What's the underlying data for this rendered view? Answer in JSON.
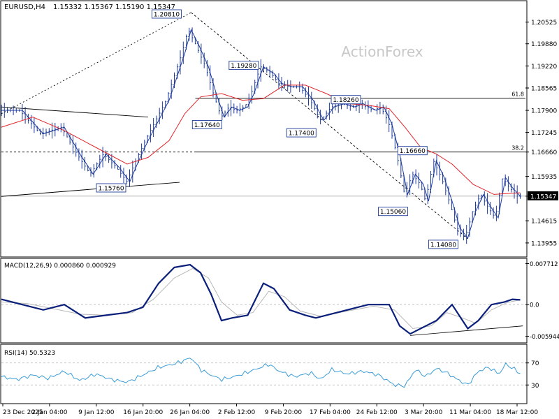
{
  "header": {
    "symbol": "EURUSD,H4",
    "ohlc": "1.15332 1.15367 1.15190 1.15347"
  },
  "watermark": "ActionForex",
  "colors": {
    "candle": "#1f3c99",
    "ma": "#e0252b",
    "macd": "#0a1f7a",
    "signal": "#b8b8b8",
    "rsi": "#3a9cd6",
    "level": "#000000",
    "grid": "#bdbdbd",
    "current_price_bg": "#000000"
  },
  "chart_data": [
    {
      "type": "candlestick",
      "name": "EURUSD H4",
      "ylim": [
        1.136,
        1.211
      ],
      "y_ticks": [
        "1.20525",
        "1.19880",
        "1.19220",
        "1.18565",
        "1.17900",
        "1.17245",
        "1.16660",
        "1.15935",
        "1.15347",
        "1.14615",
        "1.13955"
      ],
      "x_ticks": [
        "23 Dec 2025",
        "2 Jan 04:00",
        "9 Jan 12:00",
        "16 Jan 20:00",
        "26 Jan 04:00",
        "2 Feb 12:00",
        "9 Feb 20:00",
        "17 Feb 04:00",
        "24 Feb 12:00",
        "3 Mar 20:00",
        "11 Mar 04:00",
        "18 Mar 12:00"
      ],
      "current_price": "1.15347",
      "swing_labels": [
        {
          "text": "1.20810",
          "x": 0.346,
          "y": 1.2081
        },
        {
          "text": "1.19280",
          "x": 0.493,
          "y": 1.1928
        },
        {
          "text": "1.17640",
          "x": 0.423,
          "y": 1.1764
        },
        {
          "text": "1.17400",
          "x": 0.603,
          "y": 1.174
        },
        {
          "text": "1.18260",
          "x": 0.688,
          "y": 1.1826
        },
        {
          "text": "1.15760",
          "x": 0.24,
          "y": 1.1576
        },
        {
          "text": "1.16660",
          "x": 0.815,
          "y": 1.1666
        },
        {
          "text": "1.15060",
          "x": 0.778,
          "y": 1.1506
        },
        {
          "text": "1.14080",
          "x": 0.874,
          "y": 1.1408
        }
      ],
      "fib_levels": [
        {
          "label": "61.8",
          "value": 1.1826
        },
        {
          "label": "38.2",
          "value": 1.1666
        }
      ],
      "current_price_level": 1.15347,
      "anchors": [
        {
          "x": 0.0,
          "y": 1.179
        },
        {
          "x": 0.04,
          "y": 1.179
        },
        {
          "x": 0.08,
          "y": 1.172
        },
        {
          "x": 0.12,
          "y": 1.174
        },
        {
          "x": 0.15,
          "y": 1.166
        },
        {
          "x": 0.175,
          "y": 1.16
        },
        {
          "x": 0.2,
          "y": 1.166
        },
        {
          "x": 0.225,
          "y": 1.162
        },
        {
          "x": 0.245,
          "y": 1.1578
        },
        {
          "x": 0.262,
          "y": 1.164
        },
        {
          "x": 0.28,
          "y": 1.17
        },
        {
          "x": 0.3,
          "y": 1.176
        },
        {
          "x": 0.32,
          "y": 1.182
        },
        {
          "x": 0.333,
          "y": 1.188
        },
        {
          "x": 0.35,
          "y": 1.196
        },
        {
          "x": 0.362,
          "y": 1.203
        },
        {
          "x": 0.375,
          "y": 1.199
        },
        {
          "x": 0.395,
          "y": 1.192
        },
        {
          "x": 0.41,
          "y": 1.184
        },
        {
          "x": 0.425,
          "y": 1.177
        },
        {
          "x": 0.44,
          "y": 1.18
        },
        {
          "x": 0.455,
          "y": 1.179
        },
        {
          "x": 0.47,
          "y": 1.18
        },
        {
          "x": 0.482,
          "y": 1.184
        },
        {
          "x": 0.5,
          "y": 1.192
        },
        {
          "x": 0.52,
          "y": 1.19
        },
        {
          "x": 0.535,
          "y": 1.187
        },
        {
          "x": 0.555,
          "y": 1.186
        },
        {
          "x": 0.575,
          "y": 1.186
        },
        {
          "x": 0.595,
          "y": 1.182
        },
        {
          "x": 0.615,
          "y": 1.176
        },
        {
          "x": 0.635,
          "y": 1.18
        },
        {
          "x": 0.655,
          "y": 1.181
        },
        {
          "x": 0.675,
          "y": 1.18
        },
        {
          "x": 0.69,
          "y": 1.181
        },
        {
          "x": 0.715,
          "y": 1.179
        },
        {
          "x": 0.73,
          "y": 1.18
        },
        {
          "x": 0.745,
          "y": 1.175
        },
        {
          "x": 0.76,
          "y": 1.166
        },
        {
          "x": 0.775,
          "y": 1.154
        },
        {
          "x": 0.79,
          "y": 1.16
        },
        {
          "x": 0.805,
          "y": 1.157
        },
        {
          "x": 0.815,
          "y": 1.152
        },
        {
          "x": 0.83,
          "y": 1.164
        },
        {
          "x": 0.845,
          "y": 1.159
        },
        {
          "x": 0.86,
          "y": 1.152
        },
        {
          "x": 0.875,
          "y": 1.144
        },
        {
          "x": 0.89,
          "y": 1.141
        },
        {
          "x": 0.905,
          "y": 1.149
        },
        {
          "x": 0.92,
          "y": 1.154
        },
        {
          "x": 0.935,
          "y": 1.15
        },
        {
          "x": 0.948,
          "y": 1.147
        },
        {
          "x": 0.962,
          "y": 1.159
        },
        {
          "x": 0.975,
          "y": 1.156
        },
        {
          "x": 0.99,
          "y": 1.1535
        }
      ],
      "ma_points": [
        {
          "x": 0.0,
          "y": 1.174
        },
        {
          "x": 0.06,
          "y": 1.177
        },
        {
          "x": 0.12,
          "y": 1.173
        },
        {
          "x": 0.18,
          "y": 1.168
        },
        {
          "x": 0.24,
          "y": 1.163
        },
        {
          "x": 0.28,
          "y": 1.165
        },
        {
          "x": 0.32,
          "y": 1.17
        },
        {
          "x": 0.35,
          "y": 1.178
        },
        {
          "x": 0.38,
          "y": 1.183
        },
        {
          "x": 0.42,
          "y": 1.184
        },
        {
          "x": 0.46,
          "y": 1.182
        },
        {
          "x": 0.5,
          "y": 1.1825
        },
        {
          "x": 0.54,
          "y": 1.1865
        },
        {
          "x": 0.58,
          "y": 1.1865
        },
        {
          "x": 0.62,
          "y": 1.184
        },
        {
          "x": 0.66,
          "y": 1.181
        },
        {
          "x": 0.7,
          "y": 1.1805
        },
        {
          "x": 0.74,
          "y": 1.1795
        },
        {
          "x": 0.77,
          "y": 1.174
        },
        {
          "x": 0.8,
          "y": 1.168
        },
        {
          "x": 0.83,
          "y": 1.166
        },
        {
          "x": 0.86,
          "y": 1.163
        },
        {
          "x": 0.9,
          "y": 1.157
        },
        {
          "x": 0.94,
          "y": 1.154
        },
        {
          "x": 0.99,
          "y": 1.1545
        }
      ],
      "trendlines": [
        {
          "from": {
            "x": 0.0,
            "y": 1.178
          },
          "to": {
            "x": 0.362,
            "y": 1.2081
          },
          "style": "dotted"
        },
        {
          "from": {
            "x": 0.362,
            "y": 1.2081
          },
          "to": {
            "x": 0.89,
            "y": 1.1408
          },
          "style": "dashed"
        },
        {
          "from": {
            "x": 0.0,
            "y": 1.18
          },
          "to": {
            "x": 0.28,
            "y": 1.177
          },
          "style": "solid"
        },
        {
          "from": {
            "x": 0.0,
            "y": 1.1534
          },
          "to": {
            "x": 0.34,
            "y": 1.1576
          },
          "style": "solid"
        }
      ]
    },
    {
      "type": "line",
      "title": "MACD(12,26,9) 0.000860 0.000929",
      "ylim": [
        -0.0068,
        0.0083
      ],
      "y_ticks": [
        "0.007712",
        "0.0",
        "-0.005944"
      ],
      "zero_line": 0,
      "series": [
        {
          "name": "MACD",
          "points": [
            {
              "x": 0.0,
              "y": 0.001
            },
            {
              "x": 0.04,
              "y": 0.0
            },
            {
              "x": 0.08,
              "y": -0.001
            },
            {
              "x": 0.12,
              "y": 0.0
            },
            {
              "x": 0.16,
              "y": -0.0025
            },
            {
              "x": 0.2,
              "y": -0.002
            },
            {
              "x": 0.24,
              "y": -0.0015
            },
            {
              "x": 0.27,
              "y": -0.0005
            },
            {
              "x": 0.3,
              "y": 0.004
            },
            {
              "x": 0.33,
              "y": 0.007
            },
            {
              "x": 0.36,
              "y": 0.0075
            },
            {
              "x": 0.38,
              "y": 0.006
            },
            {
              "x": 0.4,
              "y": 0.002
            },
            {
              "x": 0.42,
              "y": -0.003
            },
            {
              "x": 0.44,
              "y": -0.0025
            },
            {
              "x": 0.47,
              "y": -0.002
            },
            {
              "x": 0.5,
              "y": 0.004
            },
            {
              "x": 0.52,
              "y": 0.003
            },
            {
              "x": 0.55,
              "y": -0.001
            },
            {
              "x": 0.58,
              "y": -0.002
            },
            {
              "x": 0.6,
              "y": -0.0025
            },
            {
              "x": 0.62,
              "y": -0.002
            },
            {
              "x": 0.66,
              "y": -0.001
            },
            {
              "x": 0.7,
              "y": 0.0
            },
            {
              "x": 0.74,
              "y": 0.0
            },
            {
              "x": 0.76,
              "y": -0.004
            },
            {
              "x": 0.78,
              "y": -0.0055
            },
            {
              "x": 0.81,
              "y": -0.004
            },
            {
              "x": 0.83,
              "y": -0.003
            },
            {
              "x": 0.86,
              "y": 0.0
            },
            {
              "x": 0.89,
              "y": -0.0045
            },
            {
              "x": 0.91,
              "y": -0.003
            },
            {
              "x": 0.935,
              "y": 0.0
            },
            {
              "x": 0.96,
              "y": 0.0005
            },
            {
              "x": 0.975,
              "y": 0.001
            },
            {
              "x": 0.99,
              "y": 0.0009
            }
          ]
        },
        {
          "name": "Signal",
          "points": [
            {
              "x": 0.0,
              "y": 0.0005
            },
            {
              "x": 0.05,
              "y": 0.0002
            },
            {
              "x": 0.1,
              "y": -0.0008
            },
            {
              "x": 0.15,
              "y": -0.0018
            },
            {
              "x": 0.2,
              "y": -0.002
            },
            {
              "x": 0.25,
              "y": -0.0015
            },
            {
              "x": 0.29,
              "y": 0.001
            },
            {
              "x": 0.33,
              "y": 0.005
            },
            {
              "x": 0.365,
              "y": 0.0068
            },
            {
              "x": 0.395,
              "y": 0.005
            },
            {
              "x": 0.42,
              "y": 0.0005
            },
            {
              "x": 0.45,
              "y": -0.002
            },
            {
              "x": 0.48,
              "y": -0.0015
            },
            {
              "x": 0.51,
              "y": 0.0025
            },
            {
              "x": 0.54,
              "y": 0.0015
            },
            {
              "x": 0.57,
              "y": -0.0012
            },
            {
              "x": 0.61,
              "y": -0.0022
            },
            {
              "x": 0.66,
              "y": -0.0012
            },
            {
              "x": 0.71,
              "y": -0.0003
            },
            {
              "x": 0.75,
              "y": -0.001
            },
            {
              "x": 0.785,
              "y": -0.0045
            },
            {
              "x": 0.82,
              "y": -0.004
            },
            {
              "x": 0.85,
              "y": -0.0015
            },
            {
              "x": 0.88,
              "y": -0.0025
            },
            {
              "x": 0.905,
              "y": -0.0035
            },
            {
              "x": 0.935,
              "y": -0.001
            },
            {
              "x": 0.965,
              "y": 0.0004
            },
            {
              "x": 0.99,
              "y": 0.0009
            }
          ]
        }
      ],
      "trendline": {
        "from": {
          "x": 0.78,
          "y": -0.0058
        },
        "to": {
          "x": 0.995,
          "y": -0.004
        }
      }
    },
    {
      "type": "line",
      "title": "RSI(14) 50.5323",
      "ylim": [
        0,
        100
      ],
      "y_ticks": [
        "70",
        "30"
      ],
      "levels": [
        70,
        30
      ],
      "series": [
        {
          "name": "RSI",
          "points": [
            {
              "x": 0.0,
              "y": 45
            },
            {
              "x": 0.03,
              "y": 40
            },
            {
              "x": 0.06,
              "y": 48
            },
            {
              "x": 0.09,
              "y": 42
            },
            {
              "x": 0.12,
              "y": 55
            },
            {
              "x": 0.15,
              "y": 38
            },
            {
              "x": 0.18,
              "y": 50
            },
            {
              "x": 0.21,
              "y": 40
            },
            {
              "x": 0.24,
              "y": 35
            },
            {
              "x": 0.27,
              "y": 48
            },
            {
              "x": 0.3,
              "y": 62
            },
            {
              "x": 0.33,
              "y": 68
            },
            {
              "x": 0.35,
              "y": 75
            },
            {
              "x": 0.362,
              "y": 80
            },
            {
              "x": 0.38,
              "y": 58
            },
            {
              "x": 0.4,
              "y": 48
            },
            {
              "x": 0.42,
              "y": 40
            },
            {
              "x": 0.44,
              "y": 44
            },
            {
              "x": 0.46,
              "y": 50
            },
            {
              "x": 0.49,
              "y": 60
            },
            {
              "x": 0.51,
              "y": 68
            },
            {
              "x": 0.53,
              "y": 55
            },
            {
              "x": 0.56,
              "y": 45
            },
            {
              "x": 0.59,
              "y": 52
            },
            {
              "x": 0.61,
              "y": 40
            },
            {
              "x": 0.63,
              "y": 58
            },
            {
              "x": 0.66,
              "y": 50
            },
            {
              "x": 0.69,
              "y": 55
            },
            {
              "x": 0.72,
              "y": 48
            },
            {
              "x": 0.75,
              "y": 30
            },
            {
              "x": 0.77,
              "y": 28
            },
            {
              "x": 0.79,
              "y": 58
            },
            {
              "x": 0.81,
              "y": 45
            },
            {
              "x": 0.83,
              "y": 60
            },
            {
              "x": 0.85,
              "y": 52
            },
            {
              "x": 0.87,
              "y": 40
            },
            {
              "x": 0.89,
              "y": 30
            },
            {
              "x": 0.91,
              "y": 55
            },
            {
              "x": 0.93,
              "y": 62
            },
            {
              "x": 0.95,
              "y": 50
            },
            {
              "x": 0.962,
              "y": 68
            },
            {
              "x": 0.98,
              "y": 58
            },
            {
              "x": 0.99,
              "y": 50.5
            }
          ]
        }
      ]
    }
  ]
}
